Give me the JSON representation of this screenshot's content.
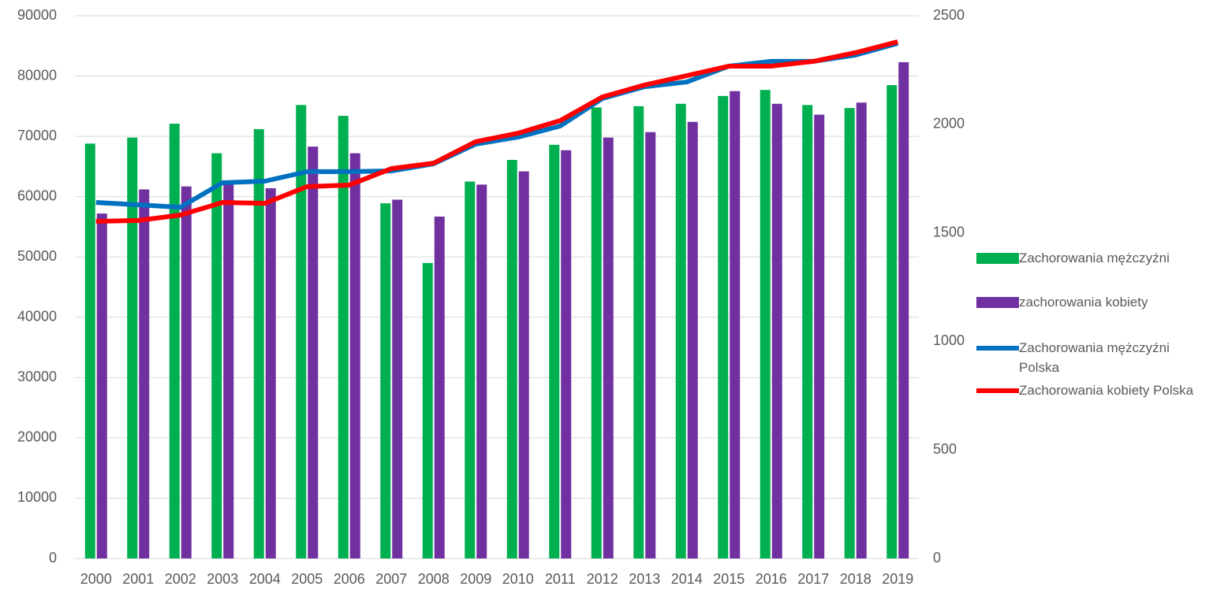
{
  "chart_data": {
    "type": "bar_line",
    "categories": [
      "2000",
      "2001",
      "2002",
      "2003",
      "2004",
      "2005",
      "2006",
      "2007",
      "2008",
      "2009",
      "2010",
      "2011",
      "2012",
      "2013",
      "2014",
      "2015",
      "2016",
      "2017",
      "2018",
      "2019"
    ],
    "series": [
      {
        "name": "Zachorowania mężczyźni",
        "type": "bar",
        "color": "#00b050",
        "values": [
          68800,
          69800,
          72100,
          67200,
          71200,
          75200,
          73400,
          58900,
          49000,
          62500,
          66100,
          68600,
          74800,
          75000,
          75400,
          76700,
          77700,
          75200,
          74700,
          78500
        ]
      },
      {
        "name": "zachorowania kobiety",
        "type": "bar",
        "color": "#7030a0",
        "values": [
          57200,
          61200,
          61700,
          62000,
          61400,
          68300,
          67200,
          59500,
          56700,
          62000,
          64200,
          67700,
          69800,
          70700,
          72400,
          77500,
          75400,
          73600,
          75600,
          82300
        ]
      },
      {
        "name": "Zachorowania mężczyźni Polska",
        "type": "line",
        "axis": "y2",
        "color": "#0070c0",
        "values": [
          1640,
          1629,
          1618,
          1731,
          1738,
          1782,
          1782,
          1785,
          1818,
          1909,
          1941,
          1992,
          2119,
          2173,
          2195,
          2268,
          2290,
          2290,
          2319,
          2373
        ]
      },
      {
        "name": "Zachorowania kobiety Polska",
        "type": "line",
        "axis": "y2",
        "color": "#ff0000",
        "values": [
          1553,
          1557,
          1582,
          1640,
          1636,
          1713,
          1720,
          1796,
          1821,
          1920,
          1959,
          2017,
          2126,
          2181,
          2224,
          2268,
          2268,
          2290,
          2330,
          2380
        ]
      }
    ],
    "ylim": [
      0,
      90000
    ],
    "yticks": [
      0,
      10000,
      20000,
      30000,
      40000,
      50000,
      60000,
      70000,
      80000,
      90000
    ],
    "y2lim": [
      0,
      2500
    ],
    "y2ticks": [
      0,
      500,
      1000,
      1500,
      2000,
      2500
    ],
    "grid": true,
    "legend": "right"
  }
}
